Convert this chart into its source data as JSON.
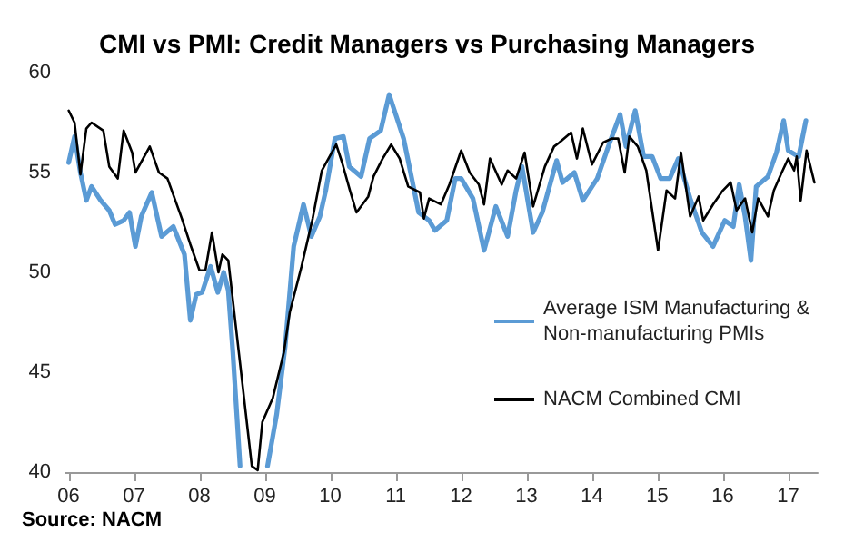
{
  "chart_data": {
    "type": "line",
    "title": "CMI vs PMI: Credit Managers vs Purchasing Managers",
    "xlim": [
      2005.95,
      2017.45
    ],
    "xticks": [
      {
        "value": 2006,
        "label": "06"
      },
      {
        "value": 2007,
        "label": "07"
      },
      {
        "value": 2008,
        "label": "08"
      },
      {
        "value": 2009,
        "label": "09"
      },
      {
        "value": 2010,
        "label": "10"
      },
      {
        "value": 2011,
        "label": "11"
      },
      {
        "value": 2012,
        "label": "12"
      },
      {
        "value": 2013,
        "label": "13"
      },
      {
        "value": 2014,
        "label": "14"
      },
      {
        "value": 2015,
        "label": "15"
      },
      {
        "value": 2016,
        "label": "16"
      },
      {
        "value": 2017,
        "label": "17"
      }
    ],
    "ylim": [
      40,
      60
    ],
    "yticks": [
      40,
      45,
      50,
      55,
      60
    ],
    "grid": false,
    "legend": "right",
    "marker": "none",
    "annotations": [
      "Source: NACM"
    ],
    "series": [
      {
        "name": "Average ISM Manufacturing & Non-manufacturing PMIs",
        "color": "#5b9bd5",
        "line_style": "solid",
        "x": [
          2006.0,
          2006.09,
          2006.18,
          2006.27,
          2006.35,
          2006.49,
          2006.62,
          2006.71,
          2006.84,
          2006.93,
          2007.02,
          2007.11,
          2007.27,
          2007.42,
          2007.6,
          2007.77,
          2007.86,
          2007.95,
          2008.04,
          2008.17,
          2008.28,
          2008.37,
          2008.44,
          2008.51,
          2008.62,
          2008.8,
          2009.04,
          2009.18,
          2009.31,
          2009.44,
          2009.59,
          2009.71,
          2009.84,
          2009.93,
          2010.07,
          2010.2,
          2010.29,
          2010.47,
          2010.6,
          2010.77,
          2010.9,
          2011.04,
          2011.12,
          2011.27,
          2011.35,
          2011.51,
          2011.6,
          2011.78,
          2011.91,
          2012.0,
          2012.18,
          2012.35,
          2012.53,
          2012.71,
          2012.84,
          2012.93,
          2013.1,
          2013.24,
          2013.46,
          2013.55,
          2013.73,
          2013.86,
          2014.08,
          2014.26,
          2014.43,
          2014.52,
          2014.66,
          2014.79,
          2014.92,
          2015.05,
          2015.19,
          2015.32,
          2015.5,
          2015.68,
          2015.85,
          2016.03,
          2016.16,
          2016.25,
          2016.34,
          2016.43,
          2016.51,
          2016.69,
          2016.82,
          2016.93,
          2017.0,
          2017.16,
          2017.27
        ],
        "values": [
          55.5,
          56.8,
          55.0,
          53.6,
          54.3,
          53.6,
          53.1,
          52.4,
          52.6,
          53.0,
          51.3,
          52.8,
          54.0,
          51.8,
          52.3,
          50.9,
          47.6,
          48.9,
          49.0,
          50.3,
          49.0,
          50.0,
          49.1,
          46.0,
          40.3,
          null,
          40.3,
          42.9,
          46.3,
          51.3,
          53.4,
          51.8,
          52.8,
          54.1,
          56.7,
          56.8,
          55.3,
          54.8,
          56.7,
          57.1,
          58.9,
          57.5,
          56.7,
          54.3,
          53.0,
          52.6,
          52.1,
          52.6,
          54.7,
          54.7,
          53.7,
          51.1,
          53.3,
          51.8,
          54.1,
          55.3,
          52.0,
          53.0,
          55.6,
          54.5,
          55.0,
          53.6,
          54.7,
          56.4,
          57.9,
          56.3,
          58.1,
          55.8,
          55.8,
          54.7,
          54.7,
          55.7,
          53.7,
          52.0,
          51.3,
          52.6,
          52.3,
          54.4,
          52.8,
          50.6,
          54.3,
          54.8,
          56.0,
          57.6,
          56.1,
          55.8,
          57.6
        ]
      },
      {
        "name": "NACM Combined CMI",
        "color": "#000000",
        "line_style": "solid",
        "x": [
          2006.0,
          2006.09,
          2006.18,
          2006.27,
          2006.35,
          2006.53,
          2006.62,
          2006.75,
          2006.84,
          2006.97,
          2007.02,
          2007.24,
          2007.38,
          2007.51,
          2007.73,
          2007.86,
          2008.0,
          2008.09,
          2008.19,
          2008.29,
          2008.35,
          2008.44,
          2008.58,
          2008.8,
          2008.89,
          2008.96,
          2009.12,
          2009.29,
          2009.38,
          2009.56,
          2009.73,
          2009.87,
          2010.09,
          2010.18,
          2010.3,
          2010.4,
          2010.58,
          2010.66,
          2010.8,
          2010.93,
          2011.06,
          2011.19,
          2011.37,
          2011.43,
          2011.51,
          2011.69,
          2011.82,
          2012.0,
          2012.13,
          2012.27,
          2012.35,
          2012.44,
          2012.62,
          2012.71,
          2012.84,
          2012.97,
          2013.1,
          2013.28,
          2013.42,
          2013.5,
          2013.68,
          2013.77,
          2013.86,
          2014.0,
          2014.17,
          2014.3,
          2014.4,
          2014.5,
          2014.57,
          2014.7,
          2014.83,
          2015.01,
          2015.14,
          2015.27,
          2015.36,
          2015.5,
          2015.63,
          2015.7,
          2015.85,
          2016.0,
          2016.12,
          2016.21,
          2016.34,
          2016.45,
          2016.54,
          2016.69,
          2016.78,
          2016.9,
          2017.0,
          2017.09,
          2017.13,
          2017.19,
          2017.28,
          2017.4
        ],
        "values": [
          58.1,
          57.5,
          54.9,
          57.2,
          57.5,
          57.1,
          55.3,
          54.7,
          57.1,
          56.0,
          55.0,
          56.3,
          55.0,
          54.7,
          52.7,
          51.4,
          50.1,
          50.1,
          52.0,
          50.0,
          50.9,
          50.6,
          46.6,
          40.3,
          40.1,
          42.5,
          43.7,
          46.0,
          48.0,
          50.3,
          52.7,
          55.1,
          56.4,
          55.5,
          54.1,
          53.0,
          53.8,
          54.8,
          55.7,
          56.4,
          55.7,
          54.3,
          54.0,
          52.7,
          53.7,
          53.4,
          54.4,
          56.1,
          55.0,
          54.4,
          53.4,
          55.7,
          54.4,
          55.1,
          54.7,
          56.0,
          53.3,
          55.3,
          56.3,
          56.5,
          57.0,
          55.7,
          57.2,
          55.4,
          56.5,
          56.7,
          56.7,
          55.0,
          56.8,
          56.3,
          55.1,
          51.1,
          54.1,
          53.7,
          56.0,
          52.8,
          53.8,
          52.6,
          53.4,
          54.1,
          54.5,
          53.1,
          53.7,
          52.0,
          53.7,
          52.8,
          54.1,
          55.0,
          55.7,
          55.1,
          55.8,
          53.6,
          56.1,
          54.5
        ]
      }
    ]
  }
}
